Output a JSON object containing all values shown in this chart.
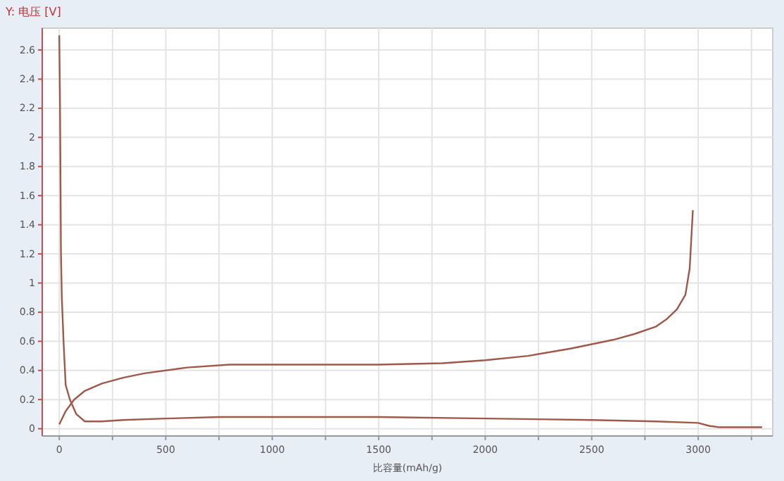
{
  "chart_data": {
    "type": "line",
    "ylabel": "Y: 电压 [V]",
    "xlabel": "比容量(mAh/g)",
    "xlim": [
      -80,
      3350
    ],
    "ylim": [
      -0.05,
      2.75
    ],
    "xticks": [
      0,
      {
        "value": 250,
        "label": null
      },
      500,
      {
        "value": 750,
        "label": null
      },
      1000,
      {
        "value": 1250,
        "label": null
      },
      1500,
      {
        "value": 1750,
        "label": null
      },
      2000,
      {
        "value": 2250,
        "label": null
      },
      2500,
      {
        "value": 2750,
        "label": null
      },
      3000,
      {
        "value": 3250,
        "label": null
      }
    ],
    "yticks": [
      0,
      0.2,
      0.4,
      0.6,
      0.8,
      1,
      1.2,
      1.4,
      1.6,
      1.8,
      2,
      2.2,
      2.4,
      2.6
    ],
    "grid": true,
    "marker": "none",
    "line_style": "solid",
    "series": [
      {
        "color": "#a0584a",
        "x": [
          0,
          3,
          5,
          8,
          12,
          20,
          30,
          50,
          80,
          120,
          200,
          300,
          500,
          750,
          1000,
          1500,
          2000,
          2500,
          2800,
          3000,
          3050,
          3100,
          3200,
          3300
        ],
        "values": [
          2.7,
          2.3,
          1.9,
          1.2,
          0.9,
          0.6,
          0.3,
          0.2,
          0.1,
          0.05,
          0.05,
          0.06,
          0.07,
          0.08,
          0.08,
          0.08,
          0.07,
          0.06,
          0.05,
          0.04,
          0.02,
          0.01,
          0.01,
          0.01
        ]
      },
      {
        "color": "#a0584a",
        "x": [
          0,
          30,
          70,
          120,
          200,
          300,
          400,
          600,
          800,
          1000,
          1500,
          1800,
          2000,
          2200,
          2400,
          2600,
          2700,
          2800,
          2850,
          2900,
          2940,
          2960,
          2975
        ],
        "values": [
          0.03,
          0.12,
          0.2,
          0.26,
          0.31,
          0.35,
          0.38,
          0.42,
          0.44,
          0.44,
          0.44,
          0.45,
          0.47,
          0.5,
          0.55,
          0.61,
          0.65,
          0.7,
          0.75,
          0.82,
          0.92,
          1.1,
          1.5
        ]
      }
    ]
  }
}
